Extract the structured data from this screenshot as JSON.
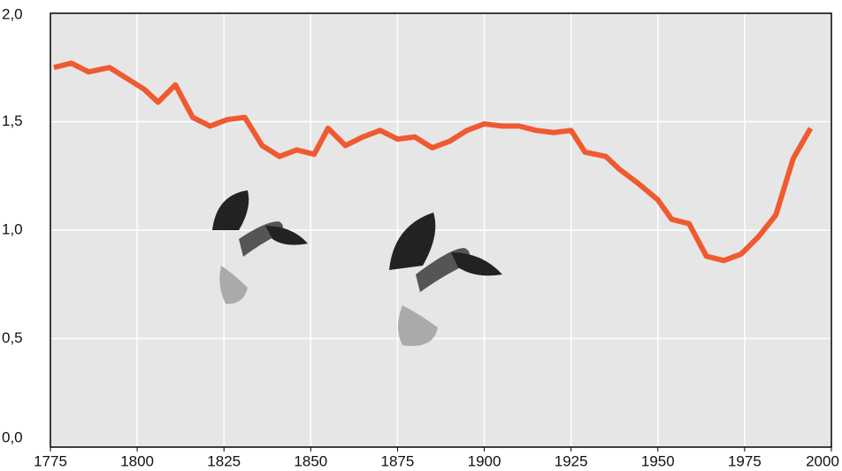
{
  "chart_data": {
    "type": "line",
    "x": [
      1776,
      1781,
      1786,
      1792,
      1797,
      1802,
      1806,
      1811,
      1816,
      1821,
      1826,
      1831,
      1836,
      1841,
      1846,
      1851,
      1855,
      1860,
      1865,
      1870,
      1875,
      1880,
      1885,
      1890,
      1895,
      1900,
      1905,
      1910,
      1915,
      1920,
      1925,
      1929,
      1935,
      1939,
      1944,
      1950,
      1954,
      1959,
      1964,
      1969,
      1974,
      1979,
      1984,
      1989,
      1994
    ],
    "values": [
      1.75,
      1.77,
      1.73,
      1.75,
      1.7,
      1.65,
      1.59,
      1.67,
      1.52,
      1.48,
      1.51,
      1.52,
      1.39,
      1.34,
      1.37,
      1.35,
      1.47,
      1.39,
      1.43,
      1.46,
      1.42,
      1.43,
      1.38,
      1.41,
      1.46,
      1.49,
      1.48,
      1.48,
      1.46,
      1.45,
      1.46,
      1.36,
      1.34,
      1.28,
      1.22,
      1.14,
      1.05,
      1.03,
      0.88,
      0.86,
      0.89,
      0.97,
      1.07,
      1.33,
      1.47
    ],
    "color": "#f05a30",
    "xlim": [
      1775,
      2000
    ],
    "xticks": [
      1775,
      1800,
      1825,
      1850,
      1875,
      1900,
      1925,
      1950,
      1975,
      2000
    ],
    "ylim": [
      0,
      2
    ],
    "yticks": [
      {
        "value": 0,
        "label": "0,0"
      },
      {
        "value": 0.5,
        "label": "0,5"
      },
      {
        "value": 1,
        "label": "1,0"
      },
      {
        "value": 1.5,
        "label": "1,5"
      },
      {
        "value": 2,
        "label": "2,0"
      }
    ],
    "grid": true
  }
}
